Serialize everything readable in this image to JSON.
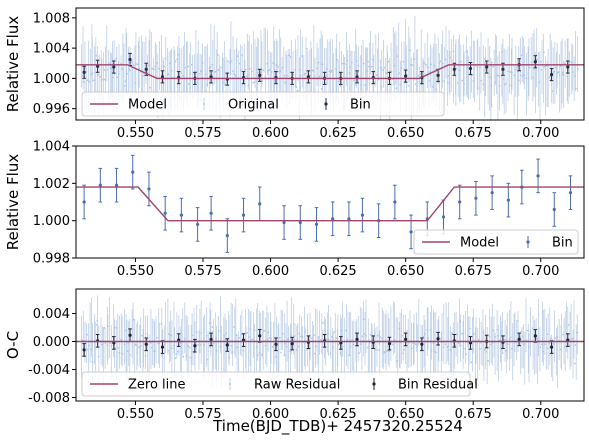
{
  "figure": {
    "x_label": "Time(BJD_TDB)+ 2457320.25524"
  },
  "colors": {
    "model": "#a0446e",
    "raw": "#b0c6e3",
    "bin_top": "#2b2b44",
    "bin_mid": "#4a6eb0",
    "bin_bottom": "#22223a"
  },
  "chart_data": [
    {
      "type": "scatter",
      "panel": "light-curve",
      "ylabel": "Relative Flux",
      "xlim": [
        0.528,
        0.716
      ],
      "ylim": [
        0.9945,
        1.0093
      ],
      "x_ticks": [
        "0.550",
        "0.575",
        "0.600",
        "0.625",
        "0.650",
        "0.675",
        "0.700"
      ],
      "y_ticks": [
        "0.996",
        "1.000",
        "1.004",
        "1.008"
      ],
      "legend": {
        "placement": "lower",
        "items": [
          "Model",
          "Original",
          "Bin"
        ]
      },
      "series": [
        {
          "name": "Model",
          "kind": "line",
          "x": [
            0.528,
            0.547,
            0.558,
            0.655,
            0.666,
            0.716
          ],
          "y": [
            1.0018,
            1.0018,
            1.0,
            1.0,
            1.0018,
            1.0018
          ]
        },
        {
          "name": "Original",
          "kind": "raw-points",
          "x_start": 0.53,
          "x_end": 0.714,
          "center_level": 1.0009,
          "scatter": 0.0022,
          "error": 0.0035
        },
        {
          "name": "Bin",
          "kind": "points-with-error",
          "x": [
            0.531,
            0.536,
            0.542,
            0.548,
            0.554,
            0.56,
            0.566,
            0.572,
            0.578,
            0.584,
            0.59,
            0.596,
            0.602,
            0.608,
            0.614,
            0.62,
            0.626,
            0.632,
            0.638,
            0.644,
            0.65,
            0.656,
            0.662,
            0.668,
            0.674,
            0.68,
            0.686,
            0.692,
            0.698,
            0.704,
            0.71
          ],
          "y": [
            1.0008,
            1.0016,
            1.0015,
            1.0025,
            1.0012,
            1.0002,
            1.0001,
            1.0,
            1.0002,
            0.9999,
            1.0001,
            1.0004,
            1.0001,
            1.0,
            1.0002,
            1.0,
            1.0,
            1.0002,
            1.0001,
            1.0,
            1.0003,
            1.0001,
            1.0004,
            1.0012,
            1.0013,
            1.0015,
            1.0012,
            1.0018,
            1.0022,
            1.0005,
            1.0015
          ],
          "error": 0.0008
        }
      ]
    },
    {
      "type": "scatter",
      "panel": "binned",
      "ylabel": "Relative Flux",
      "xlim": [
        0.528,
        0.716
      ],
      "ylim": [
        0.998,
        1.004
      ],
      "x_ticks": [
        "0.550",
        "0.575",
        "0.600",
        "0.625",
        "0.650",
        "0.675",
        "0.700"
      ],
      "y_ticks": [
        "0.998",
        "1.000",
        "1.002",
        "1.004"
      ],
      "legend": {
        "placement": "lower-right",
        "items": [
          "Model",
          "Bin"
        ]
      },
      "series": [
        {
          "name": "Model",
          "kind": "line",
          "x": [
            0.528,
            0.551,
            0.562,
            0.658,
            0.668,
            0.716
          ],
          "y": [
            1.0018,
            1.0018,
            1.0,
            1.0,
            1.0018,
            1.0018
          ]
        },
        {
          "name": "Bin",
          "kind": "points-with-error",
          "x": [
            0.531,
            0.537,
            0.543,
            0.549,
            0.555,
            0.561,
            0.567,
            0.573,
            0.578,
            0.584,
            0.59,
            0.596,
            0.605,
            0.611,
            0.617,
            0.623,
            0.629,
            0.634,
            0.64,
            0.646,
            0.652,
            0.658,
            0.664,
            0.67,
            0.676,
            0.682,
            0.688,
            0.693,
            0.699,
            0.705,
            0.711
          ],
          "y": [
            1.001,
            1.0019,
            1.0019,
            1.0026,
            1.0017,
            1.0004,
            1.0003,
            0.9998,
            1.0004,
            0.9992,
            1.0003,
            1.0009,
            0.9999,
            0.9999,
            0.9998,
            1.0001,
            1.0001,
            1.0003,
            1.0,
            1.001,
            0.9994,
            1.0001,
            1.0002,
            1.001,
            1.0012,
            1.0015,
            1.0011,
            1.0018,
            1.0024,
            1.0006,
            1.0015
          ],
          "error": 0.0009
        }
      ]
    },
    {
      "type": "scatter",
      "panel": "residuals",
      "ylabel": "O-C",
      "xlim": [
        0.528,
        0.716
      ],
      "ylim": [
        -0.0085,
        0.0075
      ],
      "x_ticks": [
        "0.550",
        "0.575",
        "0.600",
        "0.625",
        "0.650",
        "0.675",
        "0.700"
      ],
      "y_ticks": [
        "-0.008",
        "-0.004",
        "0.000",
        "0.004"
      ],
      "legend": {
        "placement": "lower",
        "items": [
          "Zero line",
          "Raw Residual",
          "Bin Residual"
        ]
      },
      "series": [
        {
          "name": "Zero line",
          "kind": "line",
          "x": [
            0.528,
            0.716
          ],
          "y": [
            0.0,
            0.0
          ]
        },
        {
          "name": "Raw Residual",
          "kind": "raw-points",
          "x_start": 0.53,
          "x_end": 0.714,
          "center_level": 0.0,
          "scatter": 0.0022,
          "error": 0.0035
        },
        {
          "name": "Bin Residual",
          "kind": "points-with-error",
          "x": [
            0.531,
            0.536,
            0.542,
            0.548,
            0.554,
            0.56,
            0.566,
            0.572,
            0.578,
            0.584,
            0.59,
            0.596,
            0.602,
            0.608,
            0.614,
            0.62,
            0.626,
            0.632,
            0.638,
            0.644,
            0.65,
            0.656,
            0.662,
            0.668,
            0.674,
            0.68,
            0.686,
            0.692,
            0.698,
            0.704,
            0.71
          ],
          "y": [
            -0.0012,
            0.0001,
            -0.0002,
            0.0009,
            -0.0004,
            -0.0008,
            0.0002,
            -0.0006,
            0.0003,
            -0.0005,
            0.0002,
            0.0008,
            -0.0004,
            -0.0003,
            -0.0001,
            0.0001,
            -0.0002,
            0.0003,
            -0.0001,
            -0.0003,
            0.0003,
            -0.0004,
            0.0004,
            0.0001,
            -0.0002,
            0.0,
            -0.0001,
            0.0003,
            0.0008,
            -0.0008,
            0.0002
          ],
          "error": 0.0009
        }
      ]
    }
  ]
}
